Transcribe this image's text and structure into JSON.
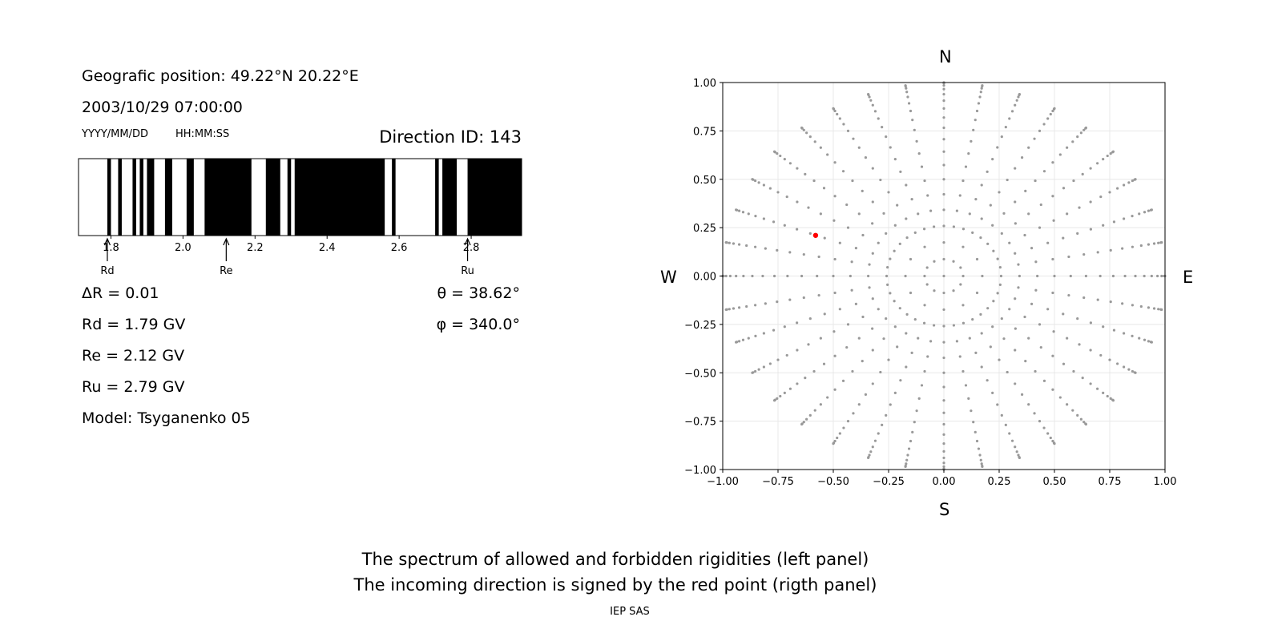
{
  "left_panel": {
    "geo_position": "Geografic position: 49.22°N 20.22°E",
    "datetime": "2003/10/29 07:00:00",
    "date_format": "YYYY/MM/DD",
    "time_format": "HH:MM:SS",
    "direction_id": "Direction ID: 143",
    "delta_r": "ΔR = 0.01",
    "rd": "Rd = 1.79 GV",
    "re": "Re = 2.12 GV",
    "ru": "Ru = 2.79 GV",
    "model": "Model: Tsyganenko 05",
    "theta": "θ = 38.62°",
    "phi": "φ = 340.0°"
  },
  "compass": {
    "north": "N",
    "south": "S",
    "west": "W",
    "east": "E"
  },
  "caption": {
    "line1": "The spectrum of allowed and forbidden rigidities (left panel)",
    "line2": "The incoming direction is signed by the red point (rigth panel)",
    "credit": "IEP SAS"
  },
  "colors": {
    "forbidden": "#000000",
    "allowed": "#ffffff",
    "grid_points": "#999999",
    "direction_point": "#ff0000"
  },
  "chart_data": [
    {
      "type": "bar",
      "title": "",
      "xlabel": "",
      "ylabel": "",
      "xlim": [
        1.71,
        2.94
      ],
      "xticks": [
        "1.8",
        "2.0",
        "2.2",
        "2.4",
        "2.6",
        "2.8"
      ],
      "tick_values": [
        1.8,
        2.0,
        2.2,
        2.4,
        2.6,
        2.8
      ],
      "forbidden_intervals": [
        [
          1.79,
          1.8
        ],
        [
          1.82,
          1.83
        ],
        [
          1.86,
          1.87
        ],
        [
          1.88,
          1.89
        ],
        [
          1.9,
          1.92
        ],
        [
          1.95,
          1.97
        ],
        [
          2.01,
          2.03
        ],
        [
          2.06,
          2.19
        ],
        [
          2.23,
          2.27
        ],
        [
          2.29,
          2.3
        ],
        [
          2.31,
          2.56
        ],
        [
          2.58,
          2.59
        ],
        [
          2.7,
          2.71
        ],
        [
          2.72,
          2.76
        ],
        [
          2.79,
          2.94
        ]
      ],
      "markers": [
        {
          "label": "Rd",
          "value": 1.79
        },
        {
          "label": "Re",
          "value": 2.12
        },
        {
          "label": "Ru",
          "value": 2.79
        }
      ]
    },
    {
      "type": "scatter",
      "title": "",
      "xlabel": "",
      "ylabel": "",
      "xlim": [
        -1.0,
        1.0
      ],
      "ylim": [
        -1.0,
        1.0
      ],
      "grid": true,
      "xticks": [
        "−1.00",
        "−0.75",
        "−0.50",
        "−0.25",
        "0.00",
        "0.25",
        "0.50",
        "0.75",
        "1.00"
      ],
      "yticks": [
        "1.00",
        "0.75",
        "0.50",
        "0.25",
        "0.00",
        "−0.25",
        "−0.50",
        "−0.75",
        "−1.00"
      ],
      "tick_values": [
        -1.0,
        -0.75,
        -0.5,
        -0.25,
        0.0,
        0.25,
        0.5,
        0.75,
        1.0
      ],
      "grid_series": {
        "zenith_angles_deg": [
          0,
          5,
          10,
          15,
          20,
          25,
          30,
          35,
          40,
          45,
          50,
          55,
          60,
          65,
          70,
          75,
          80,
          85,
          90
        ],
        "azimuth_step_deg": 10
      },
      "highlight": {
        "x": -0.58,
        "y": 0.21
      }
    }
  ]
}
